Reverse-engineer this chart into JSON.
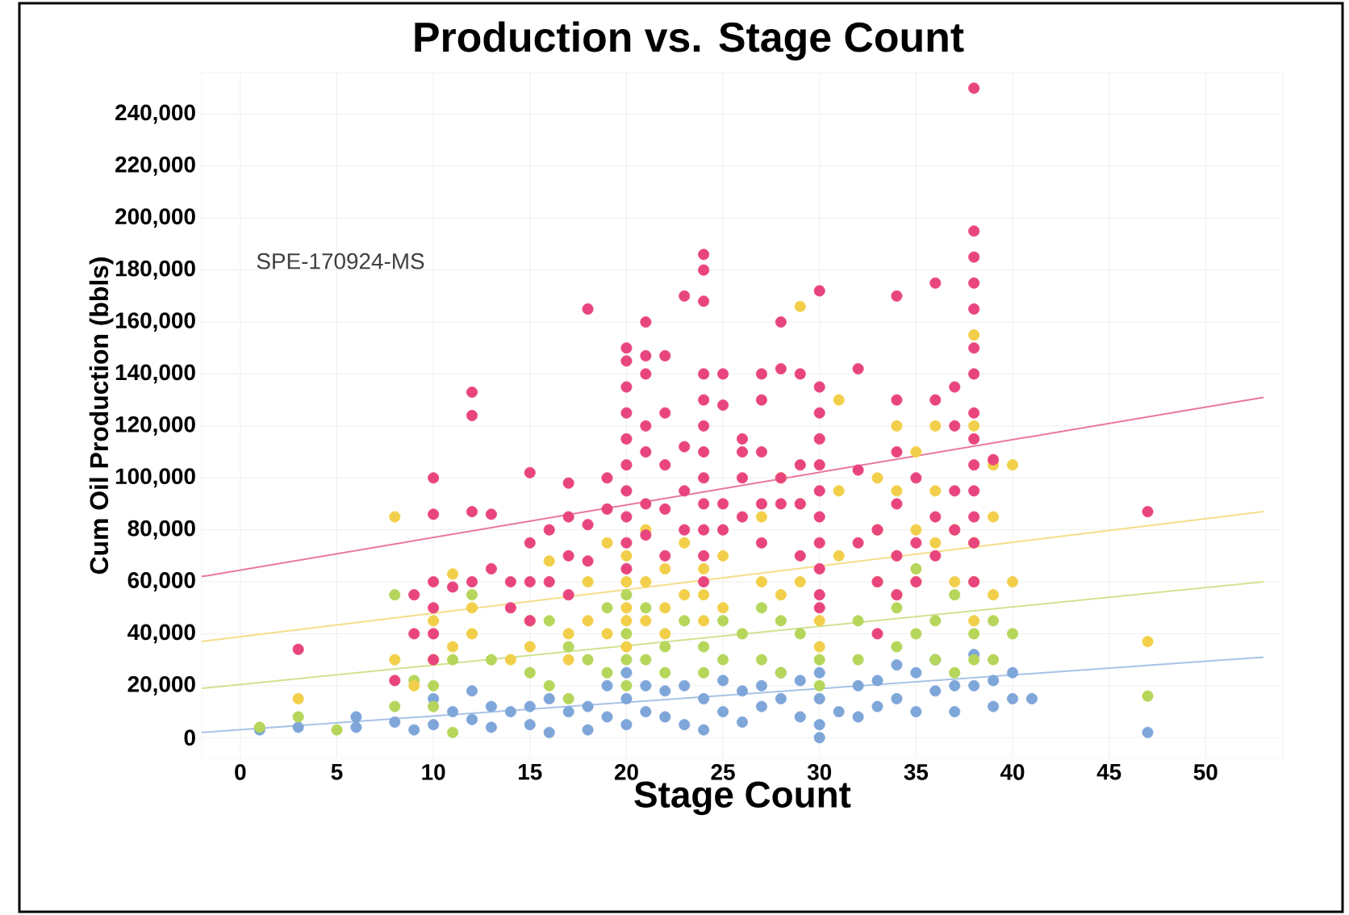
{
  "chart_data": {
    "type": "scatter",
    "title": "Production vs. Stage Count",
    "xlabel": "Stage Count",
    "ylabel": "Cum Oil Production (bbls)",
    "annotations": [
      "SPE-170924-MS"
    ],
    "xlim": [
      -2,
      54
    ],
    "ylim": [
      -8000,
      256000
    ],
    "xticks": [
      0,
      5,
      10,
      15,
      20,
      25,
      30,
      35,
      40,
      45,
      50
    ],
    "yticks": [
      {
        "value": 0,
        "label": "0"
      },
      {
        "value": 20000,
        "label": "20,000"
      },
      {
        "value": 40000,
        "label": "40,000"
      },
      {
        "value": 60000,
        "label": "60,000"
      },
      {
        "value": 80000,
        "label": "80,000"
      },
      {
        "value": 100000,
        "label": "100,000"
      },
      {
        "value": 120000,
        "label": "120,000"
      },
      {
        "value": 140000,
        "label": "140,000"
      },
      {
        "value": 160000,
        "label": "160,000"
      },
      {
        "value": 180000,
        "label": "180,000"
      },
      {
        "value": 200000,
        "label": "200,000"
      },
      {
        "value": 220000,
        "label": "220,000"
      },
      {
        "value": 240000,
        "label": "240,000"
      }
    ],
    "grid": true,
    "marker": "circle",
    "series": [
      {
        "color": "#7fa6d9",
        "x": [
          1,
          3,
          6,
          6,
          8,
          9,
          10,
          10,
          11,
          12,
          12,
          13,
          13,
          14,
          15,
          15,
          16,
          16,
          17,
          18,
          18,
          19,
          19,
          20,
          20,
          20,
          21,
          21,
          22,
          22,
          23,
          23,
          24,
          24,
          25,
          25,
          26,
          26,
          27,
          27,
          28,
          28,
          29,
          29,
          30,
          30,
          30,
          30,
          31,
          32,
          32,
          33,
          33,
          34,
          34,
          35,
          35,
          36,
          36,
          37,
          37,
          38,
          38,
          39,
          39,
          40,
          40,
          41,
          47
        ],
        "values": [
          3000,
          4000,
          8000,
          4000,
          6000,
          3000,
          15000,
          5000,
          10000,
          18000,
          7000,
          12000,
          4000,
          10000,
          12000,
          5000,
          15000,
          2000,
          10000,
          12000,
          3000,
          20000,
          8000,
          25000,
          15000,
          5000,
          20000,
          10000,
          18000,
          8000,
          20000,
          5000,
          15000,
          3000,
          22000,
          10000,
          18000,
          6000,
          20000,
          12000,
          25000,
          15000,
          22000,
          8000,
          25000,
          15000,
          5000,
          0,
          10000,
          20000,
          8000,
          22000,
          12000,
          28000,
          15000,
          25000,
          10000,
          30000,
          18000,
          20000,
          10000,
          32000,
          20000,
          22000,
          12000,
          25000,
          15000,
          15000,
          2000
        ]
      },
      {
        "color": "#b5d65a",
        "x": [
          1,
          3,
          5,
          8,
          8,
          9,
          10,
          10,
          11,
          11,
          12,
          13,
          15,
          16,
          16,
          17,
          17,
          18,
          19,
          19,
          20,
          20,
          20,
          20,
          21,
          21,
          22,
          22,
          23,
          24,
          24,
          25,
          25,
          26,
          27,
          27,
          28,
          28,
          29,
          30,
          30,
          32,
          32,
          34,
          34,
          35,
          35,
          36,
          36,
          37,
          37,
          38,
          38,
          39,
          39,
          40,
          47
        ],
        "values": [
          4000,
          8000,
          3000,
          55000,
          12000,
          22000,
          20000,
          12000,
          30000,
          2000,
          55000,
          30000,
          25000,
          45000,
          20000,
          35000,
          15000,
          30000,
          50000,
          25000,
          55000,
          40000,
          30000,
          20000,
          50000,
          30000,
          35000,
          25000,
          45000,
          35000,
          25000,
          45000,
          30000,
          40000,
          50000,
          30000,
          45000,
          25000,
          40000,
          30000,
          20000,
          45000,
          30000,
          50000,
          35000,
          65000,
          40000,
          45000,
          30000,
          55000,
          25000,
          40000,
          30000,
          45000,
          30000,
          40000,
          16000
        ]
      },
      {
        "color": "#f2cf4a",
        "x": [
          3,
          8,
          8,
          9,
          10,
          10,
          11,
          11,
          12,
          12,
          14,
          15,
          15,
          16,
          17,
          17,
          18,
          18,
          19,
          19,
          20,
          20,
          20,
          20,
          20,
          21,
          21,
          21,
          22,
          22,
          22,
          23,
          23,
          24,
          24,
          24,
          25,
          25,
          27,
          27,
          28,
          28,
          29,
          29,
          29,
          30,
          30,
          31,
          31,
          31,
          33,
          33,
          33,
          34,
          34,
          34,
          34,
          35,
          35,
          35,
          36,
          36,
          36,
          37,
          37,
          38,
          38,
          38,
          38,
          38,
          39,
          39,
          39,
          40,
          40,
          47
        ],
        "values": [
          15000,
          85000,
          30000,
          20000,
          45000,
          30000,
          63000,
          35000,
          50000,
          40000,
          30000,
          45000,
          35000,
          68000,
          40000,
          30000,
          60000,
          45000,
          75000,
          40000,
          70000,
          60000,
          50000,
          45000,
          35000,
          80000,
          60000,
          45000,
          65000,
          50000,
          40000,
          75000,
          55000,
          65000,
          55000,
          45000,
          70000,
          50000,
          85000,
          60000,
          100000,
          55000,
          166000,
          90000,
          60000,
          45000,
          35000,
          130000,
          95000,
          70000,
          100000,
          80000,
          60000,
          120000,
          95000,
          70000,
          55000,
          110000,
          80000,
          60000,
          120000,
          95000,
          75000,
          80000,
          60000,
          155000,
          120000,
          75000,
          60000,
          45000,
          105000,
          85000,
          55000,
          105000,
          60000,
          37000
        ]
      },
      {
        "color": "#e8457f",
        "x": [
          3,
          8,
          9,
          9,
          10,
          10,
          10,
          10,
          10,
          10,
          11,
          12,
          12,
          12,
          12,
          13,
          13,
          14,
          14,
          15,
          15,
          15,
          15,
          16,
          16,
          17,
          17,
          17,
          17,
          18,
          18,
          18,
          19,
          19,
          20,
          20,
          20,
          20,
          20,
          20,
          20,
          20,
          20,
          20,
          21,
          21,
          21,
          21,
          21,
          21,
          21,
          22,
          22,
          22,
          22,
          22,
          23,
          23,
          23,
          23,
          24,
          24,
          24,
          24,
          24,
          24,
          24,
          24,
          24,
          24,
          24,
          24,
          25,
          25,
          25,
          25,
          26,
          26,
          26,
          26,
          27,
          27,
          27,
          27,
          27,
          28,
          28,
          28,
          28,
          29,
          29,
          29,
          29,
          30,
          30,
          30,
          30,
          30,
          30,
          30,
          30,
          30,
          30,
          30,
          32,
          32,
          32,
          33,
          33,
          33,
          34,
          34,
          34,
          34,
          34,
          34,
          35,
          35,
          35,
          36,
          36,
          36,
          36,
          37,
          37,
          37,
          37,
          38,
          38,
          38,
          38,
          38,
          38,
          38,
          38,
          38,
          38,
          38,
          38,
          38,
          38,
          39,
          47
        ],
        "values": [
          34000,
          22000,
          55000,
          40000,
          100000,
          86000,
          60000,
          50000,
          40000,
          30000,
          58000,
          133000,
          124000,
          87000,
          60000,
          86000,
          65000,
          60000,
          50000,
          102000,
          75000,
          60000,
          45000,
          80000,
          60000,
          98000,
          85000,
          70000,
          55000,
          165000,
          82000,
          68000,
          100000,
          88000,
          150000,
          145000,
          135000,
          125000,
          115000,
          105000,
          95000,
          85000,
          75000,
          65000,
          160000,
          147000,
          140000,
          120000,
          110000,
          90000,
          78000,
          147000,
          125000,
          105000,
          88000,
          70000,
          170000,
          112000,
          95000,
          80000,
          186000,
          180000,
          168000,
          140000,
          130000,
          120000,
          110000,
          100000,
          90000,
          80000,
          70000,
          60000,
          140000,
          128000,
          90000,
          80000,
          115000,
          110000,
          100000,
          85000,
          140000,
          130000,
          110000,
          90000,
          75000,
          160000,
          142000,
          100000,
          90000,
          140000,
          105000,
          90000,
          70000,
          172000,
          135000,
          125000,
          115000,
          105000,
          95000,
          85000,
          75000,
          65000,
          55000,
          50000,
          142000,
          103000,
          75000,
          80000,
          60000,
          40000,
          170000,
          130000,
          110000,
          90000,
          70000,
          55000,
          100000,
          75000,
          60000,
          175000,
          130000,
          85000,
          70000,
          135000,
          120000,
          95000,
          80000,
          250000,
          195000,
          185000,
          175000,
          165000,
          150000,
          140000,
          125000,
          115000,
          105000,
          95000,
          85000,
          75000,
          60000,
          107000,
          87000
        ]
      },
      {
        "type": "line",
        "marker": "none",
        "color": "#e8779f",
        "x": [
          -2,
          53
        ],
        "values": [
          62000,
          131000
        ]
      },
      {
        "type": "line",
        "marker": "none",
        "color": "#f5dd8a",
        "x": [
          -2,
          53
        ],
        "values": [
          37000,
          87000
        ]
      },
      {
        "type": "line",
        "marker": "none",
        "color": "#cfe38f",
        "x": [
          -2,
          53
        ],
        "values": [
          19000,
          60000
        ]
      },
      {
        "type": "line",
        "marker": "none",
        "color": "#a8c2e6",
        "x": [
          -2,
          53
        ],
        "values": [
          2000,
          31000
        ]
      }
    ]
  }
}
